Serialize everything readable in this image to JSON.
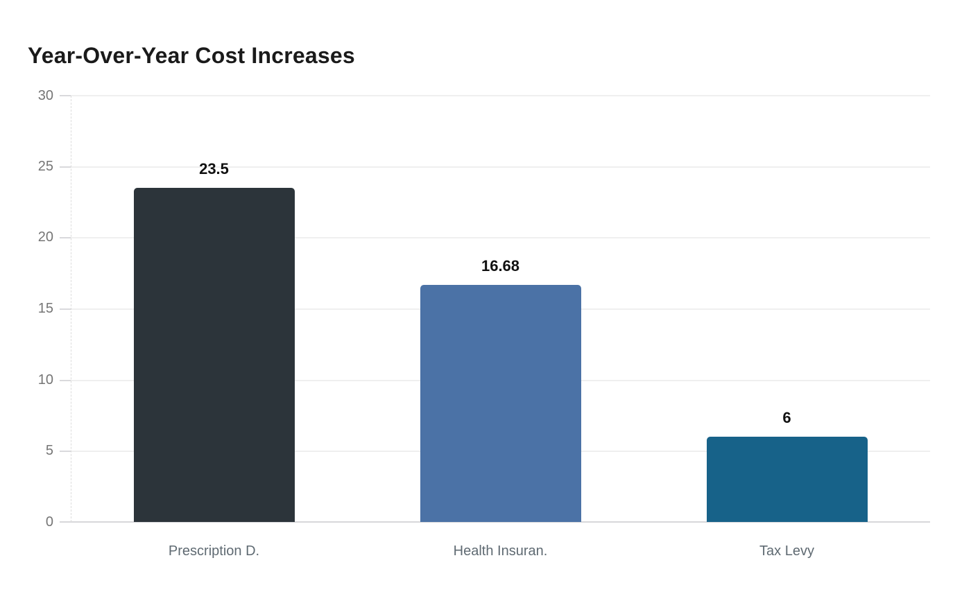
{
  "chart_data": {
    "type": "bar",
    "title": "Year-Over-Year Cost Increases",
    "categories": [
      "Prescription D.",
      "Health Insuran.",
      "Tax Levy"
    ],
    "values": [
      23.5,
      16.68,
      6
    ],
    "value_labels": [
      "23.5",
      "16.68",
      "6"
    ],
    "yticks": [
      0,
      5,
      10,
      15,
      20,
      25,
      30
    ],
    "ylim": [
      0,
      30
    ],
    "xlabel": "",
    "ylabel": "",
    "grid": "horizontal",
    "legend_position": "none",
    "bar_colors": [
      "#2c343a",
      "#4b72a6",
      "#176289"
    ],
    "title_color": "#1a1a1a",
    "value_label_color": "#111111",
    "ytick_color": "#757575",
    "category_label_color": "#5f6a72",
    "gridline_color": "#efefef",
    "baseline_color": "#d7d7da",
    "background_color": "#ffffff"
  }
}
